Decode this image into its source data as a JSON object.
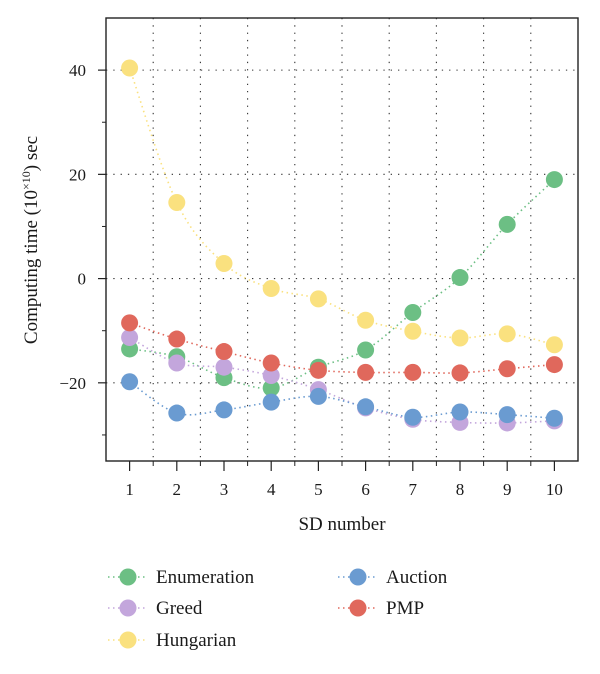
{
  "chart_data": {
    "type": "scatter",
    "title": "",
    "xlabel": "SD number",
    "ylabel": "Computing time (10×10) sec",
    "ylabel_parts": {
      "before": "Computing time (10",
      "sup": "×10",
      "after": ") sec"
    },
    "x": [
      1,
      2,
      3,
      4,
      5,
      6,
      7,
      8,
      9,
      10
    ],
    "xticks": [
      "1",
      "2",
      "3",
      "4",
      "5",
      "6",
      "7",
      "8",
      "9",
      "10"
    ],
    "yticks": [
      40,
      20,
      0,
      -20
    ],
    "ytick_labels": [
      "40",
      "20",
      "0",
      "−20"
    ],
    "xlim": [
      0.5,
      10.5
    ],
    "ylim": [
      -35,
      50
    ],
    "grid": true,
    "legend_position": "bottom",
    "series": [
      {
        "name": "Enumeration",
        "color": "#6cbf84",
        "values": [
          -13.5,
          -15,
          -19,
          -21,
          -17,
          -13.7,
          -6.5,
          0.2,
          10.4,
          19
        ]
      },
      {
        "name": "Greed",
        "color": "#c3a6dc",
        "values": [
          -11.3,
          -16.2,
          -17,
          -18.6,
          -21.3,
          -24.8,
          -27,
          -27.6,
          -27.7,
          -27.3
        ]
      },
      {
        "name": "Hungarian",
        "color": "#fae17f",
        "values": [
          40.4,
          14.6,
          2.9,
          -1.9,
          -3.9,
          -8,
          -10.1,
          -11.4,
          -10.6,
          -12.7
        ]
      },
      {
        "name": "Auction",
        "color": "#6a9bd1",
        "values": [
          -19.8,
          -25.8,
          -25.2,
          -23.7,
          -22.6,
          -24.6,
          -26.6,
          -25.6,
          -26.1,
          -26.8
        ]
      },
      {
        "name": "PMP",
        "color": "#e0685c",
        "values": [
          -8.5,
          -11.6,
          -14,
          -16.2,
          -17.6,
          -18,
          -18,
          -18.1,
          -17.3,
          -16.5
        ]
      }
    ]
  }
}
